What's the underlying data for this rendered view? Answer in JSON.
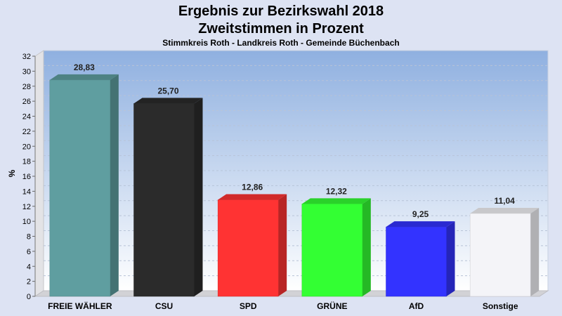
{
  "chart_data": {
    "type": "bar",
    "title": "Ergebnis zur Bezirkswahl 2018",
    "title2": "Zweitstimmen in Prozent",
    "subtitle": "Stimmkreis Roth - Landkreis Roth - Gemeinde Büchenbach",
    "ylabel": "%",
    "ylim": [
      0,
      32
    ],
    "yticks": [
      0,
      2,
      4,
      6,
      8,
      10,
      12,
      14,
      16,
      18,
      20,
      22,
      24,
      26,
      28,
      30,
      32
    ],
    "grid": true,
    "categories": [
      "FREIE WÄHLER",
      "CSU",
      "SPD",
      "GRÜNE",
      "AfD",
      "Sonstige"
    ],
    "values": [
      28.83,
      25.7,
      12.86,
      12.32,
      9.25,
      11.04
    ],
    "value_labels": [
      "28,83",
      "25,70",
      "12,86",
      "12,32",
      "9,25",
      "11,04"
    ],
    "colors": [
      "#5f9ea0",
      "#2b2b2b",
      "#ff3333",
      "#33ff33",
      "#3333ff",
      "#f4f4f8"
    ]
  }
}
